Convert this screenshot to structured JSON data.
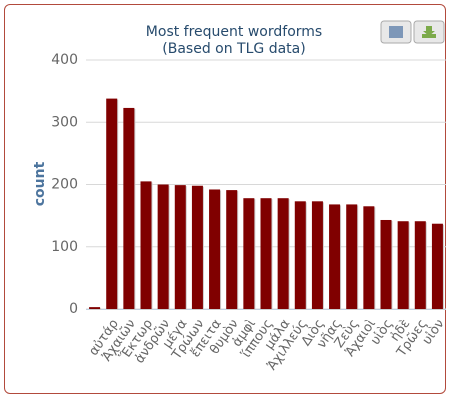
{
  "chart_data": {
    "type": "bar",
    "title": "Most frequent wordforms",
    "subtitle": "(Based on TLG data)",
    "ylabel": "count",
    "categories": [
      null,
      "αὐτάρ",
      "Ἀχαιῶν",
      "Ἕκτωρ",
      "ἀνδρῶν",
      "μέγα",
      "Τρώων",
      "ἔπειτα",
      "θυμὸν",
      "ἀμφὶ",
      "ἵππους",
      "μάλα",
      "Ἀχιλλεύς",
      "Διὸς",
      "νῆας",
      "Ζεὺς",
      "Ἀχαιοὶ",
      "υἱὸς",
      "ἠδὲ",
      "Τρῶες",
      "υἱὸν"
    ],
    "values": [
      3,
      338,
      323,
      205,
      200,
      199,
      198,
      192,
      191,
      178,
      178,
      178,
      173,
      173,
      168,
      168,
      165,
      143,
      141,
      141,
      137
    ],
    "color": "#800000",
    "ylim": [
      0,
      400
    ],
    "yticks": [
      0,
      100,
      200,
      300,
      400
    ],
    "grid": true
  }
}
